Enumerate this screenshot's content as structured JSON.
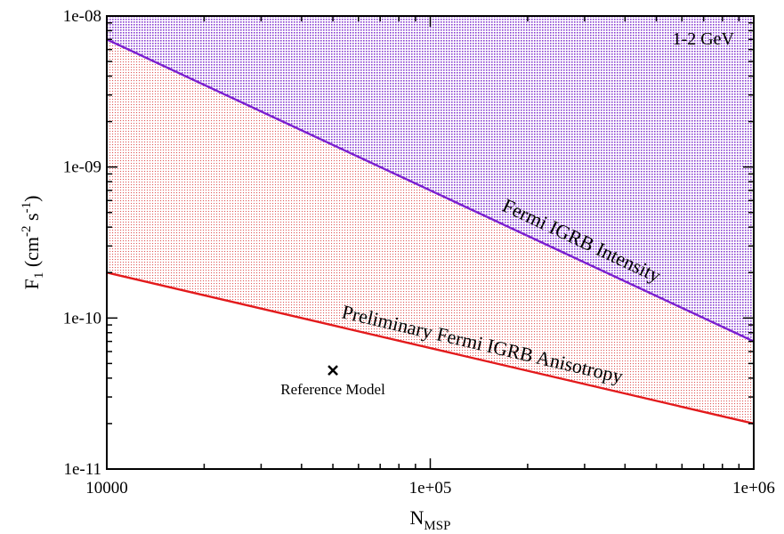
{
  "chart_data": {
    "type": "line",
    "xscale": "log",
    "yscale": "log",
    "xlim": [
      10000,
      1000000
    ],
    "ylim": [
      1e-11,
      1e-08
    ],
    "xlabel": {
      "main": "N",
      "sub": "MSP"
    },
    "ylabel": {
      "main": "F",
      "sub": "1",
      "rest": " (cm",
      "sup1": "-2",
      "mid": " s",
      "sup2": "-1",
      "close": ")"
    },
    "x_ticks": [
      {
        "value": 10000,
        "label": "10000"
      },
      {
        "value": 100000,
        "label": "1e+05"
      },
      {
        "value": 1000000,
        "label": "1e+06"
      }
    ],
    "y_ticks": [
      {
        "value": 1e-11,
        "label": "1e-11"
      },
      {
        "value": 1e-10,
        "label": "1e-10"
      },
      {
        "value": 1e-09,
        "label": "1e-09"
      },
      {
        "value": 1e-08,
        "label": "1e-08"
      }
    ],
    "series": [
      {
        "name": "Fermi IGRB Intensity",
        "color": "#7b1fd0",
        "fill": "#9b59d6",
        "x": [
          10000,
          1000000
        ],
        "y": [
          7e-09,
          7e-11
        ]
      },
      {
        "name": "Preliminary Fermi IGRB Anisotropy",
        "color": "#e31a1c",
        "fill": "#e06666",
        "x": [
          10000,
          1000000
        ],
        "y": [
          2e-10,
          2e-11
        ]
      }
    ],
    "points": [
      {
        "name": "Reference Model",
        "x": 50000,
        "y": 4.5e-11,
        "marker": "x"
      }
    ],
    "annotations": {
      "energy_band": "1-2 GeV"
    }
  }
}
